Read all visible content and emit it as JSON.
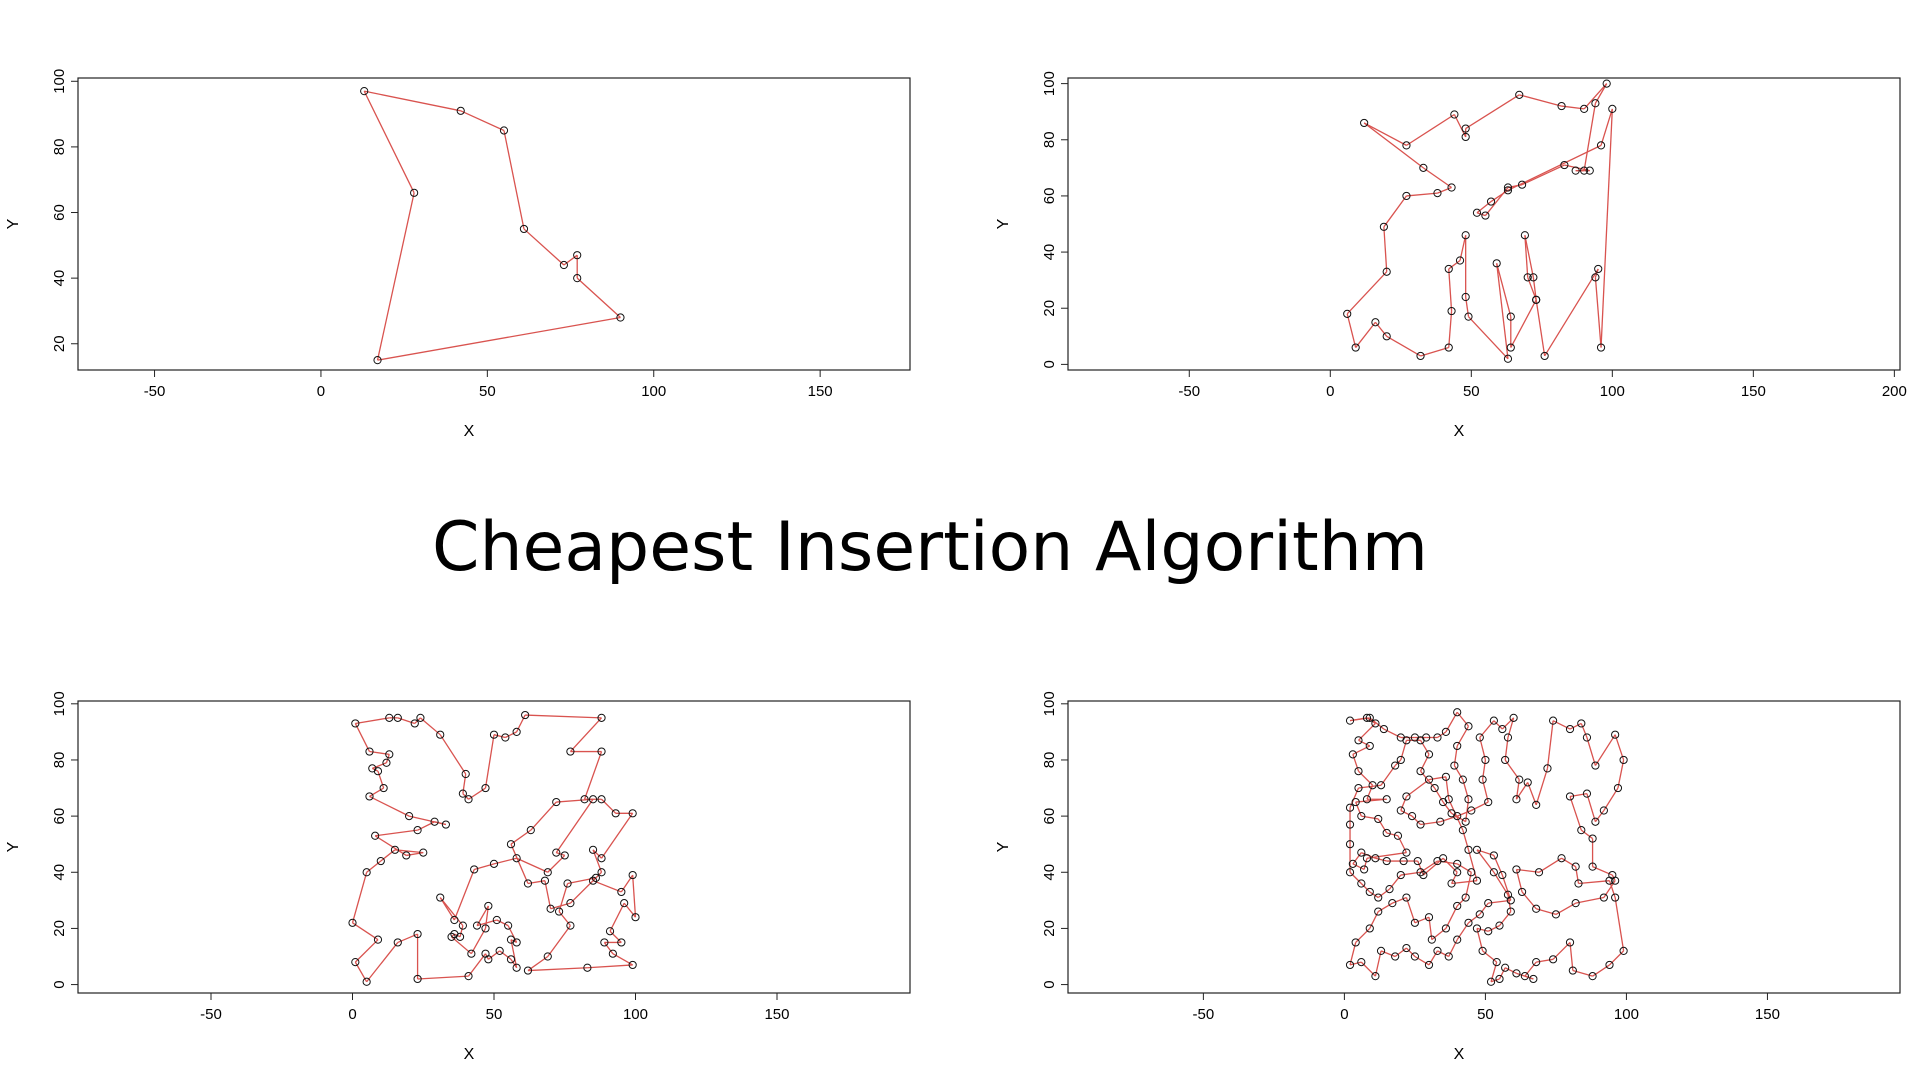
{
  "page": {
    "title": "Cheapest Insertion Algorithm"
  },
  "chart_data": [
    {
      "type": "line",
      "xlabel": "X",
      "ylabel": "Y",
      "xlim": [
        -73,
        177
      ],
      "ylim": [
        12,
        101
      ],
      "xticks": [
        -50,
        0,
        50,
        100,
        150
      ],
      "yticks": [
        20,
        40,
        60,
        80,
        100
      ],
      "line_color": "#d9534f",
      "points": [
        [
          13,
          97
        ],
        [
          42,
          91
        ],
        [
          55,
          85
        ],
        [
          61,
          55
        ],
        [
          73,
          44
        ],
        [
          77,
          47
        ],
        [
          77,
          40
        ],
        [
          90,
          28
        ],
        [
          17,
          15
        ],
        [
          28,
          66
        ],
        [
          13,
          97
        ]
      ]
    },
    {
      "type": "line",
      "xlabel": "X",
      "ylabel": "Y",
      "xlim": [
        -93,
        202
      ],
      "ylim": [
        -2,
        102
      ],
      "xticks": [
        -50,
        0,
        50,
        100,
        150,
        200
      ],
      "yticks": [
        0,
        20,
        40,
        60,
        80,
        100
      ],
      "line_color": "#d9534f",
      "points": [
        [
          12,
          86
        ],
        [
          27,
          78
        ],
        [
          44,
          89
        ],
        [
          48,
          81
        ],
        [
          48,
          84
        ],
        [
          67,
          96
        ],
        [
          82,
          92
        ],
        [
          90,
          91
        ],
        [
          98,
          100
        ],
        [
          94,
          93
        ],
        [
          90,
          69
        ],
        [
          87,
          69
        ],
        [
          92,
          69
        ],
        [
          83,
          71
        ],
        [
          68,
          64
        ],
        [
          63,
          63
        ],
        [
          55,
          53
        ],
        [
          52,
          54
        ],
        [
          57,
          58
        ],
        [
          63,
          62
        ],
        [
          96,
          78
        ],
        [
          100,
          91
        ],
        [
          96,
          6
        ],
        [
          94,
          31
        ],
        [
          95,
          34
        ],
        [
          76,
          3
        ],
        [
          73,
          23
        ],
        [
          72,
          31
        ],
        [
          69,
          46
        ],
        [
          70,
          31
        ],
        [
          73,
          23
        ],
        [
          64,
          6
        ],
        [
          64,
          17
        ],
        [
          59,
          36
        ],
        [
          63,
          2
        ],
        [
          49,
          17
        ],
        [
          48,
          24
        ],
        [
          48,
          46
        ],
        [
          46,
          37
        ],
        [
          42,
          34
        ],
        [
          43,
          19
        ],
        [
          42,
          6
        ],
        [
          32,
          3
        ],
        [
          20,
          10
        ],
        [
          16,
          15
        ],
        [
          9,
          6
        ],
        [
          6,
          18
        ],
        [
          20,
          33
        ],
        [
          19,
          49
        ],
        [
          27,
          60
        ],
        [
          38,
          61
        ],
        [
          43,
          63
        ],
        [
          33,
          70
        ],
        [
          12,
          86
        ]
      ]
    },
    {
      "type": "line",
      "xlabel": "X",
      "ylabel": "Y",
      "xlim": [
        -97,
        197
      ],
      "ylim": [
        -3,
        101
      ],
      "xticks": [
        -50,
        0,
        50,
        100,
        150
      ],
      "yticks": [
        0,
        20,
        40,
        60,
        80,
        100
      ],
      "line_color": "#d9534f",
      "points": [
        [
          1,
          93
        ],
        [
          13,
          95
        ],
        [
          16,
          95
        ],
        [
          22,
          93
        ],
        [
          24,
          95
        ],
        [
          31,
          89
        ],
        [
          40,
          75
        ],
        [
          39,
          68
        ],
        [
          41,
          66
        ],
        [
          47,
          70
        ],
        [
          50,
          89
        ],
        [
          54,
          88
        ],
        [
          58,
          90
        ],
        [
          61,
          96
        ],
        [
          88,
          95
        ],
        [
          77,
          83
        ],
        [
          88,
          83
        ],
        [
          82,
          66
        ],
        [
          88,
          66
        ],
        [
          93,
          61
        ],
        [
          99,
          61
        ],
        [
          88,
          45
        ],
        [
          85,
          48
        ],
        [
          88,
          40
        ],
        [
          85,
          37
        ],
        [
          95,
          33
        ],
        [
          99,
          39
        ],
        [
          100,
          24
        ],
        [
          96,
          29
        ],
        [
          91,
          19
        ],
        [
          95,
          15
        ],
        [
          89,
          15
        ],
        [
          92,
          11
        ],
        [
          99,
          7
        ],
        [
          83,
          6
        ],
        [
          62,
          5
        ],
        [
          69,
          10
        ],
        [
          77,
          21
        ],
        [
          73,
          26
        ],
        [
          76,
          36
        ],
        [
          86,
          38
        ],
        [
          77,
          29
        ],
        [
          70,
          27
        ],
        [
          68,
          37
        ],
        [
          62,
          36
        ],
        [
          56,
          50
        ],
        [
          63,
          55
        ],
        [
          72,
          65
        ],
        [
          85,
          66
        ],
        [
          72,
          47
        ],
        [
          75,
          46
        ],
        [
          69,
          40
        ],
        [
          58,
          45
        ],
        [
          50,
          43
        ],
        [
          43,
          41
        ],
        [
          36,
          23
        ],
        [
          31,
          31
        ],
        [
          39,
          21
        ],
        [
          38,
          17
        ],
        [
          36,
          18
        ],
        [
          35,
          17
        ],
        [
          42,
          11
        ],
        [
          47,
          20
        ],
        [
          48,
          28
        ],
        [
          44,
          21
        ],
        [
          51,
          23
        ],
        [
          55,
          21
        ],
        [
          58,
          15
        ],
        [
          56,
          16
        ],
        [
          58,
          6
        ],
        [
          56,
          9
        ],
        [
          52,
          12
        ],
        [
          48,
          9
        ],
        [
          47,
          11
        ],
        [
          41,
          3
        ],
        [
          23,
          2
        ],
        [
          23,
          18
        ],
        [
          16,
          15
        ],
        [
          5,
          1
        ],
        [
          1,
          8
        ],
        [
          9,
          16
        ],
        [
          0,
          22
        ],
        [
          5,
          40
        ],
        [
          10,
          44
        ],
        [
          15,
          48
        ],
        [
          25,
          47
        ],
        [
          19,
          46
        ],
        [
          8,
          53
        ],
        [
          23,
          55
        ],
        [
          29,
          58
        ],
        [
          33,
          57
        ],
        [
          20,
          60
        ],
        [
          6,
          67
        ],
        [
          11,
          70
        ],
        [
          9,
          76
        ],
        [
          7,
          77
        ],
        [
          12,
          79
        ],
        [
          13,
          82
        ],
        [
          6,
          83
        ],
        [
          1,
          93
        ]
      ]
    },
    {
      "type": "line",
      "xlabel": "X",
      "ylabel": "Y",
      "xlim": [
        -98,
        197
      ],
      "ylim": [
        -3,
        101
      ],
      "xticks": [
        -50,
        0,
        50,
        100,
        150
      ],
      "yticks": [
        0,
        20,
        40,
        60,
        80,
        100
      ],
      "line_color": "#d9534f",
      "points": [
        [
          2,
          94
        ],
        [
          8,
          95
        ],
        [
          11,
          93
        ],
        [
          5,
          87
        ],
        [
          9,
          85
        ],
        [
          3,
          82
        ],
        [
          5,
          76
        ],
        [
          10,
          71
        ],
        [
          8,
          66
        ],
        [
          15,
          66
        ],
        [
          4,
          65
        ],
        [
          6,
          60
        ],
        [
          12,
          59
        ],
        [
          15,
          54
        ],
        [
          19,
          53
        ],
        [
          22,
          47
        ],
        [
          8,
          45
        ],
        [
          7,
          41
        ],
        [
          3,
          43
        ],
        [
          6,
          47
        ],
        [
          11,
          45
        ],
        [
          15,
          44
        ],
        [
          21,
          44
        ],
        [
          26,
          44
        ],
        [
          28,
          39
        ],
        [
          35,
          45
        ],
        [
          40,
          40
        ],
        [
          38,
          36
        ],
        [
          47,
          37
        ],
        [
          44,
          48
        ],
        [
          42,
          55
        ],
        [
          37,
          66
        ],
        [
          36,
          74
        ],
        [
          30,
          73
        ],
        [
          22,
          67
        ],
        [
          20,
          62
        ],
        [
          24,
          60
        ],
        [
          27,
          57
        ],
        [
          34,
          58
        ],
        [
          40,
          60
        ],
        [
          45,
          62
        ],
        [
          51,
          65
        ],
        [
          49,
          73
        ],
        [
          50,
          80
        ],
        [
          48,
          88
        ],
        [
          53,
          94
        ],
        [
          56,
          91
        ],
        [
          60,
          95
        ],
        [
          58,
          88
        ],
        [
          57,
          80
        ],
        [
          62,
          73
        ],
        [
          61,
          66
        ],
        [
          65,
          72
        ],
        [
          68,
          64
        ],
        [
          72,
          77
        ],
        [
          74,
          94
        ],
        [
          80,
          91
        ],
        [
          84,
          93
        ],
        [
          86,
          88
        ],
        [
          89,
          78
        ],
        [
          96,
          89
        ],
        [
          99,
          80
        ],
        [
          97,
          70
        ],
        [
          92,
          62
        ],
        [
          89,
          58
        ],
        [
          86,
          68
        ],
        [
          80,
          67
        ],
        [
          84,
          55
        ],
        [
          88,
          52
        ],
        [
          88,
          42
        ],
        [
          95,
          39
        ],
        [
          96,
          37
        ],
        [
          92,
          31
        ],
        [
          82,
          29
        ],
        [
          75,
          25
        ],
        [
          68,
          27
        ],
        [
          63,
          33
        ],
        [
          61,
          41
        ],
        [
          69,
          40
        ],
        [
          77,
          45
        ],
        [
          82,
          42
        ],
        [
          83,
          36
        ],
        [
          94,
          37
        ],
        [
          96,
          31
        ],
        [
          99,
          12
        ],
        [
          94,
          7
        ],
        [
          88,
          3
        ],
        [
          81,
          5
        ],
        [
          80,
          15
        ],
        [
          74,
          9
        ],
        [
          68,
          8
        ],
        [
          64,
          3
        ],
        [
          67,
          2
        ],
        [
          61,
          4
        ],
        [
          57,
          6
        ],
        [
          55,
          2
        ],
        [
          52,
          1
        ],
        [
          54,
          8
        ],
        [
          49,
          12
        ],
        [
          47,
          20
        ],
        [
          51,
          19
        ],
        [
          55,
          21
        ],
        [
          59,
          26
        ],
        [
          58,
          32
        ],
        [
          53,
          40
        ],
        [
          47,
          48
        ],
        [
          53,
          46
        ],
        [
          56,
          39
        ],
        [
          59,
          30
        ],
        [
          51,
          29
        ],
        [
          48,
          25
        ],
        [
          44,
          22
        ],
        [
          40,
          16
        ],
        [
          37,
          10
        ],
        [
          33,
          12
        ],
        [
          30,
          7
        ],
        [
          25,
          10
        ],
        [
          22,
          13
        ],
        [
          18,
          10
        ],
        [
          13,
          12
        ],
        [
          11,
          3
        ],
        [
          6,
          8
        ],
        [
          2,
          7
        ],
        [
          4,
          15
        ],
        [
          9,
          20
        ],
        [
          12,
          26
        ],
        [
          17,
          29
        ],
        [
          22,
          31
        ],
        [
          25,
          22
        ],
        [
          30,
          24
        ],
        [
          31,
          16
        ],
        [
          36,
          20
        ],
        [
          40,
          28
        ],
        [
          43,
          31
        ],
        [
          45,
          40
        ],
        [
          40,
          43
        ],
        [
          33,
          44
        ],
        [
          27,
          40
        ],
        [
          20,
          39
        ],
        [
          16,
          34
        ],
        [
          12,
          31
        ],
        [
          9,
          33
        ],
        [
          6,
          36
        ],
        [
          2,
          40
        ],
        [
          2,
          50
        ],
        [
          2,
          57
        ],
        [
          2,
          63
        ],
        [
          5,
          70
        ],
        [
          13,
          71
        ],
        [
          18,
          78
        ],
        [
          20,
          80
        ],
        [
          22,
          87
        ],
        [
          27,
          87
        ],
        [
          30,
          82
        ],
        [
          27,
          76
        ],
        [
          32,
          70
        ],
        [
          35,
          65
        ],
        [
          38,
          61
        ],
        [
          43,
          58
        ],
        [
          44,
          66
        ],
        [
          42,
          73
        ],
        [
          39,
          78
        ],
        [
          40,
          85
        ],
        [
          44,
          92
        ],
        [
          40,
          97
        ],
        [
          36,
          90
        ],
        [
          33,
          88
        ],
        [
          29,
          88
        ],
        [
          25,
          88
        ],
        [
          20,
          88
        ],
        [
          14,
          91
        ],
        [
          9,
          95
        ],
        [
          2,
          94
        ]
      ]
    }
  ]
}
